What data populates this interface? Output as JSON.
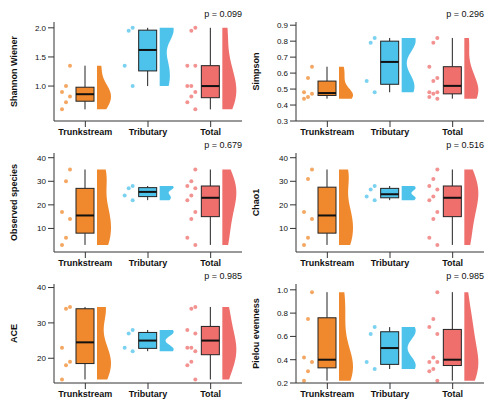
{
  "chart_data": [
    {
      "type": "box",
      "y_label": "Shannon Wiener",
      "annotation": "p = 0.099",
      "categories": [
        "Trunkstream",
        "Tributary",
        "Total"
      ],
      "colors": [
        "#F0892E",
        "#4DC3EB",
        "#EF6F6C"
      ],
      "ylim": [
        0.4,
        2.1
      ],
      "yticks": [
        {
          "value": 1,
          "label": "1.0"
        },
        {
          "value": 1.5,
          "label": "1.5"
        },
        {
          "value": 2,
          "label": "2.0"
        }
      ],
      "boxes": [
        {
          "min": 0.6,
          "q1": 0.74,
          "median": 0.86,
          "q3": 0.98,
          "max": 1.35,
          "points": [
            1.35,
            1.0,
            0.9,
            0.82,
            0.72,
            0.6
          ]
        },
        {
          "min": 1.0,
          "q1": 1.26,
          "median": 1.62,
          "q3": 1.96,
          "max": 2.0,
          "points": [
            2.0,
            1.95,
            1.35,
            1.0
          ]
        },
        {
          "min": 0.6,
          "q1": 0.8,
          "median": 1.0,
          "q3": 1.35,
          "max": 2.0,
          "points": [
            2.0,
            1.95,
            1.35,
            1.35,
            1.0,
            1.0,
            0.9,
            0.82,
            0.72,
            0.6
          ]
        }
      ]
    },
    {
      "type": "box",
      "y_label": "Simpson",
      "annotation": "p = 0.296",
      "categories": [
        "Trunkstream",
        "Tributary",
        "Total"
      ],
      "colors": [
        "#F0892E",
        "#4DC3EB",
        "#EF6F6C"
      ],
      "ylim": [
        0.3,
        0.92
      ],
      "yticks": [
        0.3,
        0.4,
        0.5,
        0.6,
        0.7,
        0.8,
        0.9
      ],
      "boxes": [
        {
          "min": 0.44,
          "q1": 0.46,
          "median": 0.475,
          "q3": 0.55,
          "max": 0.64,
          "points": [
            0.64,
            0.57,
            0.48,
            0.47,
            0.45,
            0.44
          ]
        },
        {
          "min": 0.48,
          "q1": 0.53,
          "median": 0.67,
          "q3": 0.8,
          "max": 0.82,
          "points": [
            0.82,
            0.79,
            0.55,
            0.48
          ]
        },
        {
          "min": 0.44,
          "q1": 0.47,
          "median": 0.52,
          "q3": 0.64,
          "max": 0.82,
          "points": [
            0.82,
            0.79,
            0.64,
            0.57,
            0.55,
            0.48,
            0.48,
            0.47,
            0.45,
            0.44
          ]
        }
      ]
    },
    {
      "type": "box",
      "y_label": "Observed species",
      "annotation": "p = 0.679",
      "categories": [
        "Trunkstream",
        "Tributary",
        "Total"
      ],
      "colors": [
        "#F0892E",
        "#4DC3EB",
        "#EF6F6C"
      ],
      "ylim": [
        0,
        42
      ],
      "yticks": [
        10,
        20,
        30,
        40
      ],
      "boxes": [
        {
          "min": 3,
          "q1": 8,
          "median": 15.5,
          "q3": 27,
          "max": 35,
          "points": [
            35,
            30,
            17,
            14,
            6,
            3
          ]
        },
        {
          "min": 22,
          "q1": 23.5,
          "median": 25.5,
          "q3": 27.3,
          "max": 28,
          "points": [
            28,
            27,
            24,
            22
          ]
        },
        {
          "min": 3,
          "q1": 15,
          "median": 23,
          "q3": 28,
          "max": 35,
          "points": [
            35,
            30,
            28,
            27,
            24,
            22,
            17,
            14,
            6,
            3
          ]
        }
      ]
    },
    {
      "type": "box",
      "y_label": "Chao1",
      "annotation": "p = 0.516",
      "categories": [
        "Trunkstream",
        "Tributary",
        "Total"
      ],
      "colors": [
        "#F0892E",
        "#4DC3EB",
        "#EF6F6C"
      ],
      "ylim": [
        0,
        42
      ],
      "yticks": [
        10,
        20,
        30,
        40
      ],
      "boxes": [
        {
          "min": 3,
          "q1": 8,
          "median": 15.5,
          "q3": 27.5,
          "max": 35,
          "points": [
            35,
            31,
            17,
            14,
            6,
            3
          ]
        },
        {
          "min": 22,
          "q1": 23,
          "median": 24.5,
          "q3": 27,
          "max": 28,
          "points": [
            28,
            26.5,
            23.5,
            22
          ]
        },
        {
          "min": 3,
          "q1": 15,
          "median": 23,
          "q3": 28,
          "max": 35,
          "points": [
            35,
            31,
            28,
            26.5,
            23.5,
            22,
            17,
            14,
            6,
            3
          ]
        }
      ]
    },
    {
      "type": "box",
      "y_label": "ACE",
      "annotation": "p = 0.985",
      "categories": [
        "Trunkstream",
        "Tributary",
        "Total"
      ],
      "colors": [
        "#F0892E",
        "#4DC3EB",
        "#EF6F6C"
      ],
      "ylim": [
        13,
        41
      ],
      "yticks": [
        20,
        30,
        40
      ],
      "boxes": [
        {
          "min": 14,
          "q1": 18.5,
          "median": 24.5,
          "q3": 34,
          "max": 34.5,
          "points": [
            34.5,
            34,
            23,
            19,
            18,
            14
          ]
        },
        {
          "min": 22,
          "q1": 22.8,
          "median": 25,
          "q3": 27.3,
          "max": 28,
          "points": [
            28,
            27,
            23,
            22
          ]
        },
        {
          "min": 14,
          "q1": 21,
          "median": 25,
          "q3": 29,
          "max": 34.5,
          "points": [
            34.5,
            34,
            28,
            27,
            23,
            23,
            22,
            19,
            18,
            14
          ]
        }
      ]
    },
    {
      "type": "box",
      "y_label": "Pielou evenness",
      "annotation": "p = 0.985",
      "categories": [
        "Trunkstream",
        "Tributary",
        "Total"
      ],
      "colors": [
        "#F0892E",
        "#4DC3EB",
        "#EF6F6C"
      ],
      "ylim": [
        0.2,
        1.05
      ],
      "yticks": [
        0.2,
        0.4,
        0.6,
        0.8,
        {
          "value": 1,
          "label": "1.0"
        }
      ],
      "boxes": [
        {
          "min": 0.22,
          "q1": 0.33,
          "median": 0.4,
          "q3": 0.76,
          "max": 0.98,
          "points": [
            0.98,
            0.75,
            0.42,
            0.38,
            0.3,
            0.22
          ]
        },
        {
          "min": 0.32,
          "q1": 0.36,
          "median": 0.5,
          "q3": 0.64,
          "max": 0.68,
          "points": [
            0.68,
            0.62,
            0.38,
            0.32
          ]
        },
        {
          "min": 0.22,
          "q1": 0.35,
          "median": 0.4,
          "q3": 0.66,
          "max": 0.98,
          "points": [
            0.98,
            0.75,
            0.68,
            0.62,
            0.42,
            0.38,
            0.38,
            0.32,
            0.3,
            0.22
          ]
        }
      ]
    }
  ]
}
